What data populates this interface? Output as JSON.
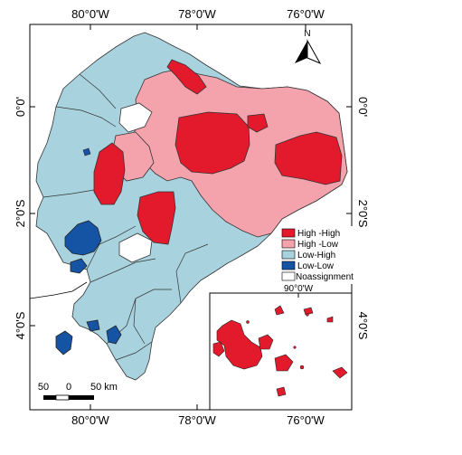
{
  "map": {
    "top_ticks": [
      "80°0'W",
      "78°0'W",
      "76°0'W"
    ],
    "bottom_ticks": [
      "80°0'W",
      "78°0'W",
      "76°0'W"
    ],
    "left_ticks": [
      "0°0'",
      "2°0'S",
      "4°0'S"
    ],
    "right_ticks": [
      "0°0'",
      "2°0'S",
      "4°0'S"
    ],
    "north_label": "N"
  },
  "legend": {
    "items": [
      {
        "label": "High -High",
        "color": "#e31a2b"
      },
      {
        "label": "High -Low",
        "color": "#f4a3ad"
      },
      {
        "label": "Low-High",
        "color": "#a9d2df"
      },
      {
        "label": "Low-Low",
        "color": "#1554a5"
      },
      {
        "label": "Noassignment",
        "color": "#ffffff"
      }
    ]
  },
  "scale_bar": {
    "labels": [
      "50",
      "0",
      "50 km"
    ]
  },
  "inset": {
    "tick_label": "90°0'W"
  },
  "colors": {
    "high_high": "#e31a2b",
    "high_low": "#f4a3ad",
    "low_high": "#a9d2df",
    "low_low": "#1554a5",
    "no_assignment": "#ffffff"
  }
}
